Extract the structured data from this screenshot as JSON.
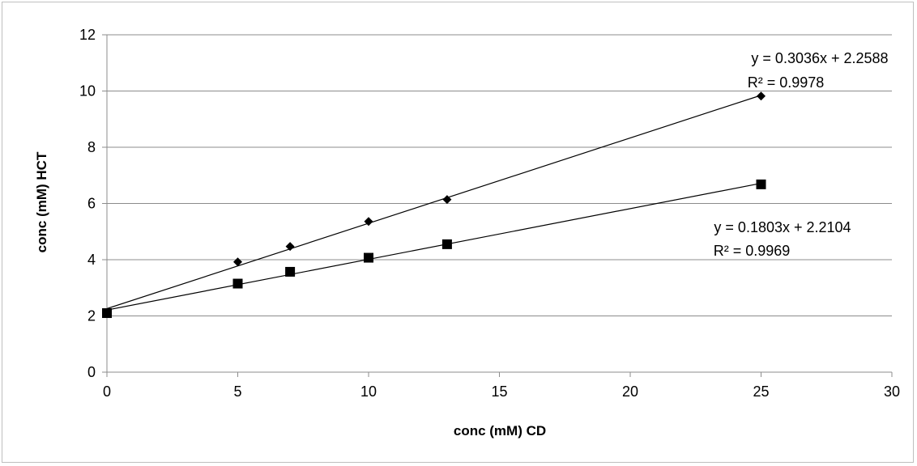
{
  "chart_data": {
    "type": "scatter",
    "xlabel": "conc  (mM) CD",
    "ylabel": "conc (mM) HCT",
    "xlim": [
      0,
      30
    ],
    "ylim": [
      0,
      12
    ],
    "xticks": [
      0,
      5,
      10,
      15,
      20,
      25,
      30
    ],
    "yticks": [
      0,
      2,
      4,
      6,
      8,
      10,
      12
    ],
    "grid": {
      "horizontal": true,
      "vertical": false
    },
    "series": [
      {
        "marker": "diamond",
        "color": "#000000",
        "x": [
          0,
          5,
          7,
          10,
          13,
          25
        ],
        "y": [
          2.1,
          3.92,
          4.47,
          5.36,
          6.14,
          9.82
        ],
        "trendline": {
          "slope": 0.3036,
          "intercept": 2.2588
        },
        "annotation": {
          "equation": "y = 0.3036x + 2.2588",
          "r2": "R² = 0.9978"
        }
      },
      {
        "marker": "square",
        "color": "#000000",
        "x": [
          0,
          5,
          7,
          10,
          13,
          25
        ],
        "y": [
          2.1,
          3.15,
          3.57,
          4.07,
          4.55,
          6.68
        ],
        "trendline": {
          "slope": 0.1803,
          "intercept": 2.2104
        },
        "annotation": {
          "equation": "y = 0.1803x + 2.2104",
          "r2": "R² = 0.9969"
        }
      }
    ]
  }
}
